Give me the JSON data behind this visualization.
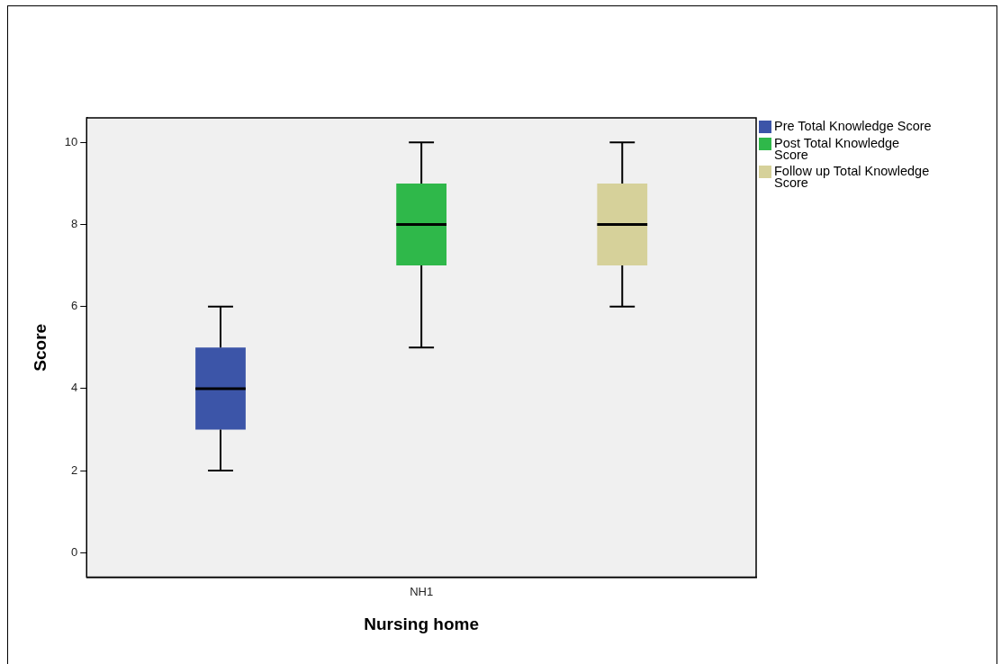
{
  "chart_data": {
    "type": "box",
    "xlabel": "Nursing home",
    "ylabel": "Score",
    "categories": [
      "NH1"
    ],
    "ylim": [
      -0.6,
      10.6
    ],
    "yticks": [
      0,
      2,
      4,
      6,
      8,
      10
    ],
    "legend": "top right",
    "series": [
      {
        "name": "Pre Total Knowledge Score",
        "color": "#3c55a8",
        "boxes": [
          {
            "low": 2,
            "q1": 3,
            "median": 4,
            "q3": 5,
            "high": 6
          }
        ]
      },
      {
        "name": "Post Total Knowledge Score",
        "color": "#2fb84a",
        "boxes": [
          {
            "low": 5,
            "q1": 7,
            "median": 8,
            "q3": 9,
            "high": 10
          }
        ]
      },
      {
        "name": "Follow up Total Knowledge Score",
        "color": "#d6d19a",
        "boxes": [
          {
            "low": 6,
            "q1": 7,
            "median": 8,
            "q3": 9,
            "high": 10
          }
        ]
      }
    ]
  }
}
